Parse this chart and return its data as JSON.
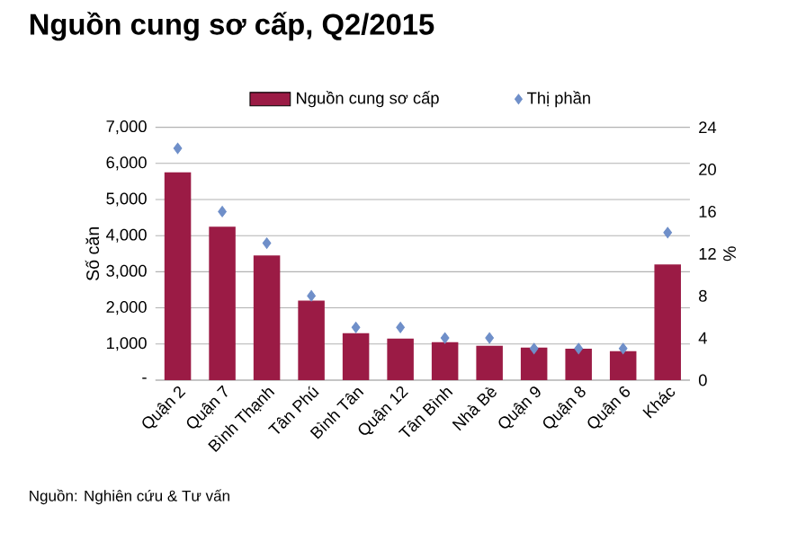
{
  "chart_data": {
    "type": "bar",
    "title": "Nguồn cung sơ cấp, Q2/2015",
    "categories": [
      "Quận 2",
      "Quận 7",
      "Bình Thạnh",
      "Tân Phú",
      "Bình Tân",
      "Quận 12",
      "Tân Bình",
      "Nhà Bè",
      "Quận 9",
      "Quận 8",
      "Quận 6",
      "Khác"
    ],
    "series": [
      {
        "name": "Nguồn cung sơ cấp",
        "color": "#9b1b45",
        "values": [
          5750,
          4250,
          3450,
          2200,
          1300,
          1150,
          1050,
          950,
          900,
          870,
          800,
          3200
        ]
      },
      {
        "name": "Thị phần",
        "type": "scatter",
        "axis": "y2",
        "marker": "diamond",
        "color": "#6f8fc9",
        "values": [
          22,
          16,
          13,
          8,
          5,
          5,
          4,
          4,
          3,
          3,
          3,
          14
        ]
      }
    ],
    "ylabel": "Số căn",
    "y2label": "%",
    "ylim": [
      0,
      7000
    ],
    "yticks": [
      {
        "value": 0,
        "label": "-"
      },
      {
        "value": 1000,
        "label": "1,000"
      },
      {
        "value": 2000,
        "label": "2,000"
      },
      {
        "value": 3000,
        "label": "3,000"
      },
      {
        "value": 4000,
        "label": "4,000"
      },
      {
        "value": 5000,
        "label": "5,000"
      },
      {
        "value": 6000,
        "label": "6,000"
      },
      {
        "value": 7000,
        "label": "7,000"
      }
    ],
    "y2lim": [
      0,
      24
    ],
    "y2ticks": [
      0,
      4,
      8,
      12,
      16,
      20,
      24
    ],
    "grid": "y",
    "legend": "top",
    "annotations": [
      "Nguồn: Nghiên cứu & Tư vấn"
    ]
  }
}
